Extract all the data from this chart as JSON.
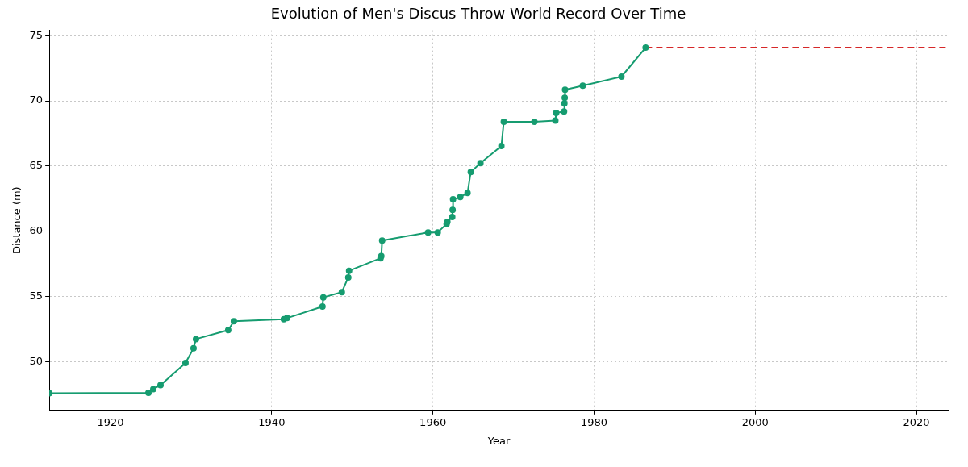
{
  "chart_data": {
    "type": "line",
    "title": "Evolution of Men's Discus Throw World Record Over Time",
    "xlabel": "Year",
    "ylabel": "Distance (m)",
    "xlim": [
      1912.4,
      2024
    ],
    "xticks": [
      1920,
      1940,
      1960,
      1980,
      2000,
      2020
    ],
    "ylim": [
      46.26,
      75.41
    ],
    "yticks": [
      50,
      55,
      60,
      65,
      70,
      75
    ],
    "grid": true,
    "legend": false,
    "marker": "circle",
    "line_style": "solid",
    "series": [
      {
        "color": "#169c70",
        "x": [
          1912.4,
          1924.7,
          1925.3,
          1926.2,
          1929.3,
          1930.3,
          1930.6,
          1934.6,
          1935.3,
          1941.5,
          1941.9,
          1946.3,
          1946.4,
          1948.7,
          1949.5,
          1949.6,
          1953.5,
          1953.6,
          1953.7,
          1959.4,
          1960.6,
          1961.7,
          1961.8,
          1962.4,
          1962.45,
          1962.5,
          1963.4,
          1964.3,
          1964.7,
          1965.9,
          1968.5,
          1968.8,
          1972.6,
          1975.2,
          1975.3,
          1976.28,
          1976.32,
          1976.36,
          1976.4,
          1978.6,
          1983.4,
          1986.4
        ],
        "values": [
          47.58,
          47.61,
          47.89,
          48.2,
          49.9,
          51.03,
          51.73,
          52.42,
          53.1,
          53.26,
          53.34,
          54.23,
          54.93,
          55.33,
          56.46,
          56.97,
          57.93,
          58.1,
          59.28,
          59.91,
          59.91,
          60.56,
          60.72,
          61.1,
          61.64,
          62.45,
          62.62,
          62.94,
          64.55,
          65.22,
          66.54,
          68.4,
          68.4,
          68.48,
          69.08,
          69.18,
          69.8,
          70.24,
          70.86,
          71.16,
          71.86,
          74.08
        ]
      },
      {
        "color": "#d62728",
        "x": [
          1986.4,
          2024
        ],
        "values": [
          74.08,
          74.08
        ],
        "line_style": "dashed",
        "marker": "none"
      }
    ]
  }
}
